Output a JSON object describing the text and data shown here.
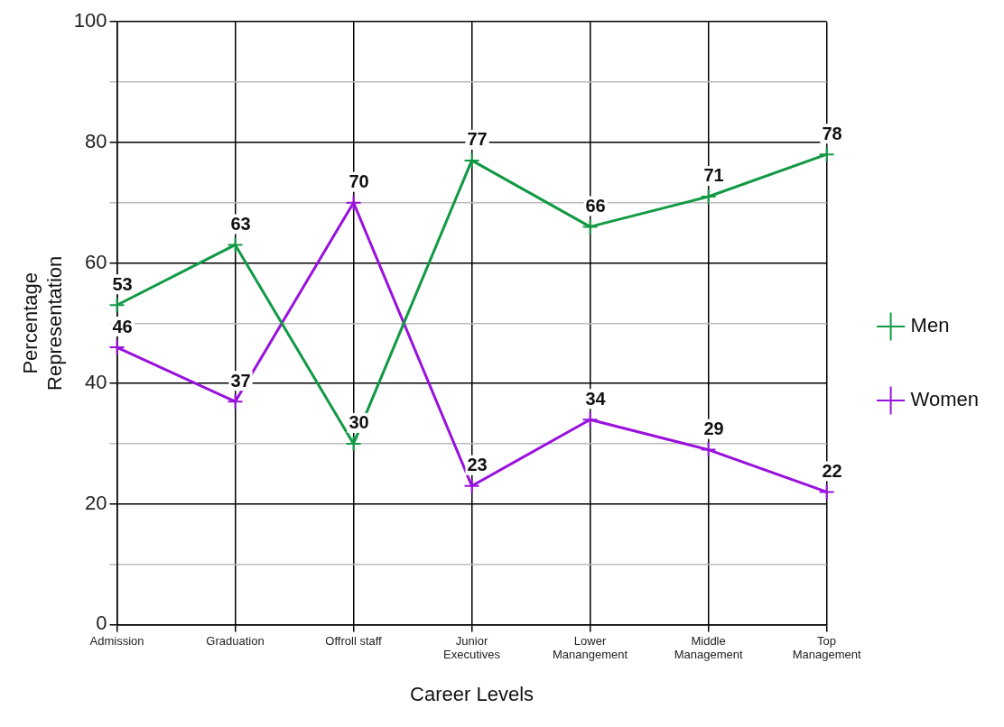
{
  "chart_data": {
    "type": "line",
    "xlabel": "Career Levels",
    "ylabel": "Percentage Representation",
    "categories": [
      "Admission",
      "Graduation",
      "Offroll staff",
      "Junior Executives",
      "Lower Manangement",
      "Middle Management",
      "Top Management"
    ],
    "series": [
      {
        "name": "Men",
        "color": "#119944",
        "values": [
          53,
          63,
          30,
          77,
          66,
          71,
          78
        ]
      },
      {
        "name": "Women",
        "color": "#9911dd",
        "values": [
          46,
          37,
          70,
          23,
          34,
          29,
          22
        ]
      }
    ],
    "ylim": [
      0,
      100
    ],
    "yticks": [
      0,
      {
        "value": 10,
        "label": null
      },
      20,
      {
        "value": 30,
        "label": null
      },
      40,
      {
        "value": 50,
        "label": null
      },
      60,
      {
        "value": 70,
        "label": null
      },
      80,
      {
        "value": 90,
        "label": null
      },
      100
    ],
    "grid": true,
    "legend": "right",
    "marker": "cross",
    "line_style": "solid",
    "data_labels": true
  }
}
